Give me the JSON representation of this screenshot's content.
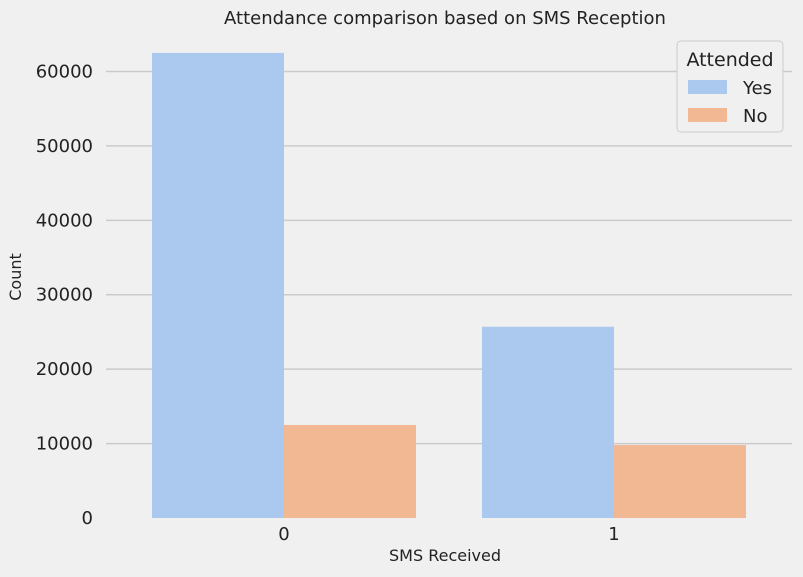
{
  "chart_data": {
    "type": "bar",
    "title": "Attendance comparison based on SMS Reception",
    "xlabel": "SMS Received",
    "ylabel": "Count",
    "categories": [
      "0",
      "1"
    ],
    "ylim": [
      0,
      64500
    ],
    "yticks": [
      0,
      10000,
      20000,
      30000,
      40000,
      50000,
      60000
    ],
    "ytick_labels": [
      "0",
      "10000",
      "20000",
      "30000",
      "40000",
      "50000",
      "60000"
    ],
    "grid": "horizontal",
    "legend": {
      "title": "Attended",
      "position": "top-right"
    },
    "series": [
      {
        "name": "Yes",
        "color": "#abc9ee",
        "values": [
          62500,
          25700
        ]
      },
      {
        "name": "No",
        "color": "#f1b893",
        "values": [
          12500,
          9800
        ]
      }
    ]
  }
}
